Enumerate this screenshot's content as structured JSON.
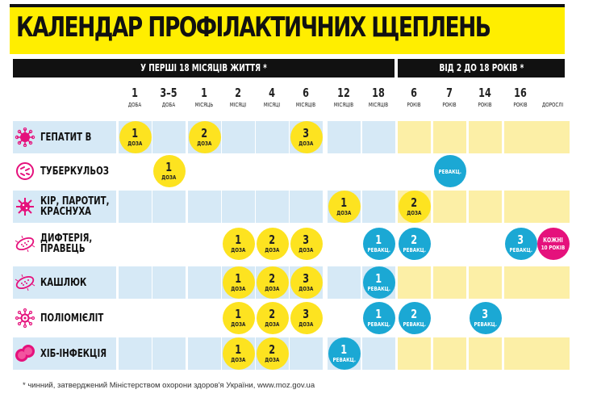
{
  "title": "КАЛЕНДАР ПРОФІЛАКТИЧНИХ ЩЕПЛЕНЬ",
  "sections": [
    {
      "label": "У ПЕРШІ 18 МІСЯЦІВ ЖИТТЯ *"
    },
    {
      "label": "ВІД 2 ДО 18 РОКІВ *"
    }
  ],
  "colors": {
    "yellow": "#fde320",
    "blue": "#1ba8d4",
    "pink": "#e5117c",
    "row_blue": "#d6e9f6",
    "row_yellow": "#fcefa6",
    "title_bg": "#ffee00"
  },
  "columns": [
    {
      "num": "1",
      "unit": "ДОБА"
    },
    {
      "num": "3–5",
      "unit": "ДОБА"
    },
    {
      "num": "1",
      "unit": "МІСЯЦЬ"
    },
    {
      "num": "2",
      "unit": "МІСЯЦІ"
    },
    {
      "num": "4",
      "unit": "МІСЯЦІ"
    },
    {
      "num": "6",
      "unit": "МІСЯЦІВ"
    },
    {
      "num": "12",
      "unit": "МІСЯЦІВ"
    },
    {
      "num": "18",
      "unit": "МІСЯЦІВ"
    },
    {
      "num": "6",
      "unit": "РОКІВ"
    },
    {
      "num": "7",
      "unit": "РОКІВ"
    },
    {
      "num": "14",
      "unit": "РОКІВ"
    },
    {
      "num": "16",
      "unit": "РОКІВ"
    },
    {
      "num": "",
      "unit": "ДОРОСЛІ"
    }
  ],
  "rows": [
    {
      "name": "ГЕПАТИТ В",
      "icon": "virus-icon",
      "shaded": true,
      "doses": [
        {
          "col": 0,
          "num": "1",
          "unit": "ДОЗА",
          "type": "y"
        },
        {
          "col": 2,
          "num": "2",
          "unit": "ДОЗА",
          "type": "y"
        },
        {
          "col": 5,
          "num": "3",
          "unit": "ДОЗА",
          "type": "y"
        }
      ]
    },
    {
      "name": "ТУБЕРКУЛЬОЗ",
      "icon": "bacteria-dish-icon",
      "shaded": false,
      "doses": [
        {
          "col": 1,
          "num": "1",
          "unit": "ДОЗА",
          "type": "y"
        },
        {
          "col": 9,
          "num": "",
          "unit": "РЕВАКЦ.",
          "type": "b"
        }
      ]
    },
    {
      "name": "КІР, ПАРОТИТ,\nКРАСНУХА",
      "icon": "spiky-virus-icon",
      "shaded": true,
      "doses": [
        {
          "col": 6,
          "num": "1",
          "unit": "ДОЗА",
          "type": "y"
        },
        {
          "col": 8,
          "num": "2",
          "unit": "ДОЗА",
          "type": "y"
        }
      ]
    },
    {
      "name": "ДИФТЕРІЯ,\nПРАВЕЦЬ",
      "icon": "bacillus-icon",
      "shaded": false,
      "doses": [
        {
          "col": 3,
          "num": "1",
          "unit": "ДОЗА",
          "type": "y"
        },
        {
          "col": 4,
          "num": "2",
          "unit": "ДОЗА",
          "type": "y"
        },
        {
          "col": 5,
          "num": "3",
          "unit": "ДОЗА",
          "type": "y"
        },
        {
          "col": 7,
          "num": "1",
          "unit": "РЕВАКЦ.",
          "type": "b"
        },
        {
          "col": 8,
          "num": "2",
          "unit": "РЕВАКЦ.",
          "type": "b"
        },
        {
          "col": 11,
          "num": "3",
          "unit": "РЕВАКЦ.",
          "type": "b"
        },
        {
          "col": 12,
          "num": "КОЖНІ",
          "unit": "10 РОКІВ",
          "type": "p"
        }
      ]
    },
    {
      "name": "КАШЛЮК",
      "icon": "bacillus-icon",
      "shaded": true,
      "doses": [
        {
          "col": 3,
          "num": "1",
          "unit": "ДОЗА",
          "type": "y"
        },
        {
          "col": 4,
          "num": "2",
          "unit": "ДОЗА",
          "type": "y"
        },
        {
          "col": 5,
          "num": "3",
          "unit": "ДОЗА",
          "type": "y"
        },
        {
          "col": 7,
          "num": "1",
          "unit": "РЕВАКЦ.",
          "type": "b"
        }
      ]
    },
    {
      "name": "ПОЛІОМІЄЛІТ",
      "icon": "polio-virus-icon",
      "shaded": false,
      "doses": [
        {
          "col": 3,
          "num": "1",
          "unit": "ДОЗА",
          "type": "y"
        },
        {
          "col": 4,
          "num": "2",
          "unit": "ДОЗА",
          "type": "y"
        },
        {
          "col": 5,
          "num": "3",
          "unit": "ДОЗА",
          "type": "y"
        },
        {
          "col": 7,
          "num": "1",
          "unit": "РЕВАКЦ.",
          "type": "b"
        },
        {
          "col": 8,
          "num": "2",
          "unit": "РЕВАКЦ.",
          "type": "b"
        },
        {
          "col": 10,
          "num": "3",
          "unit": "РЕВАКЦ.",
          "type": "b"
        }
      ]
    },
    {
      "name": "ХІБ-ІНФЕКЦІЯ",
      "icon": "cell-division-icon",
      "shaded": true,
      "doses": [
        {
          "col": 3,
          "num": "1",
          "unit": "ДОЗА",
          "type": "y"
        },
        {
          "col": 4,
          "num": "2",
          "unit": "ДОЗА",
          "type": "y"
        },
        {
          "col": 6,
          "num": "1",
          "unit": "РЕВАКЦ.",
          "type": "b"
        }
      ]
    }
  ],
  "footer": "* чинний, затверджений Міністерством охорони здоров'я України, www.moz.gov.ua"
}
